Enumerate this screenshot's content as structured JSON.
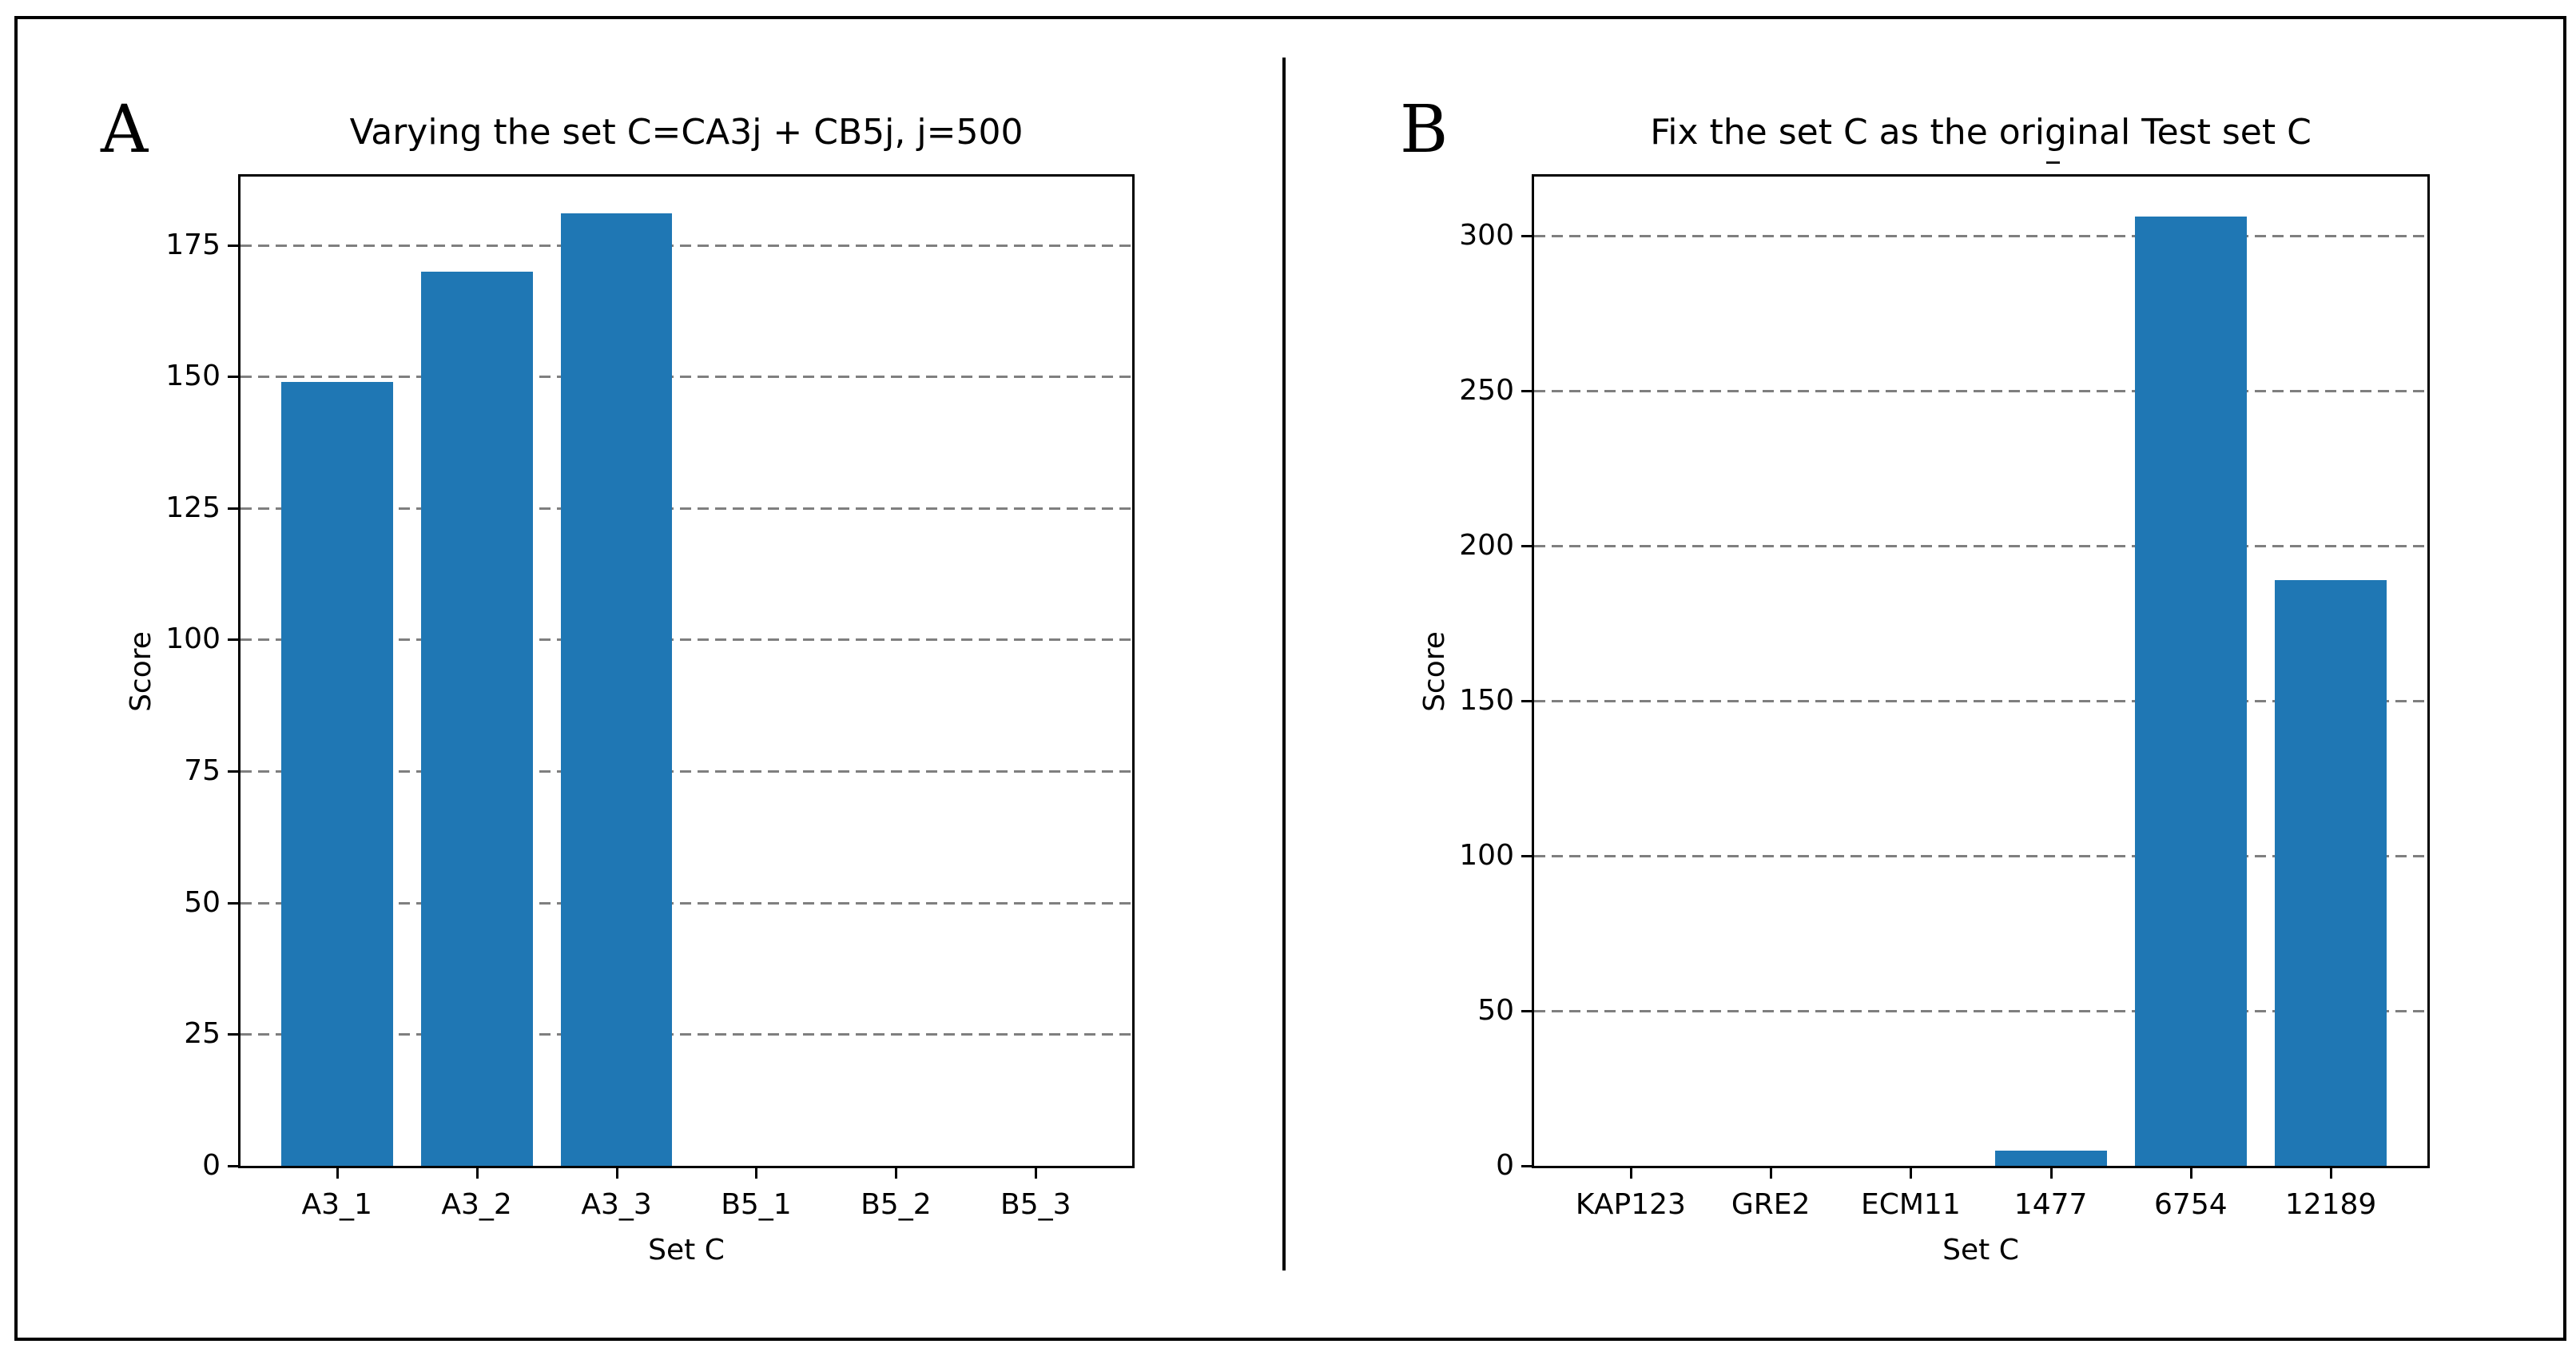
{
  "figure": {
    "panel_labels": [
      "A",
      "B"
    ],
    "colors": {
      "bar": "#1f77b4",
      "grid": "#7f7f7f",
      "axis": "#000000",
      "background": "#ffffff"
    }
  },
  "chart_data": [
    {
      "type": "bar",
      "panel": "A",
      "title": "Varying the set C=CA3j + CB5j, j=500",
      "xlabel": "Set C",
      "ylabel": "Score",
      "categories": [
        "A3_1",
        "A3_2",
        "A3_3",
        "B5_1",
        "B5_2",
        "B5_3"
      ],
      "values": [
        149,
        170,
        181,
        0,
        0,
        0
      ],
      "yticks": [
        0,
        25,
        50,
        75,
        100,
        125,
        150,
        175
      ],
      "ylim": [
        0,
        188
      ],
      "grid": true,
      "grid_style": "dashed",
      "legend": null
    },
    {
      "type": "bar",
      "panel": "B",
      "title": "Fix the set C as the original Test set C",
      "title_artifact": "_",
      "xlabel": "Set C",
      "ylabel": "Score",
      "categories": [
        "KAP123",
        "GRE2",
        "ECM11",
        "1477",
        "6754",
        "12189"
      ],
      "values": [
        0,
        0,
        0,
        5,
        306,
        189
      ],
      "yticks": [
        0,
        50,
        100,
        150,
        200,
        250,
        300
      ],
      "ylim": [
        0,
        319
      ],
      "grid": true,
      "grid_style": "dashed",
      "legend": null
    }
  ]
}
